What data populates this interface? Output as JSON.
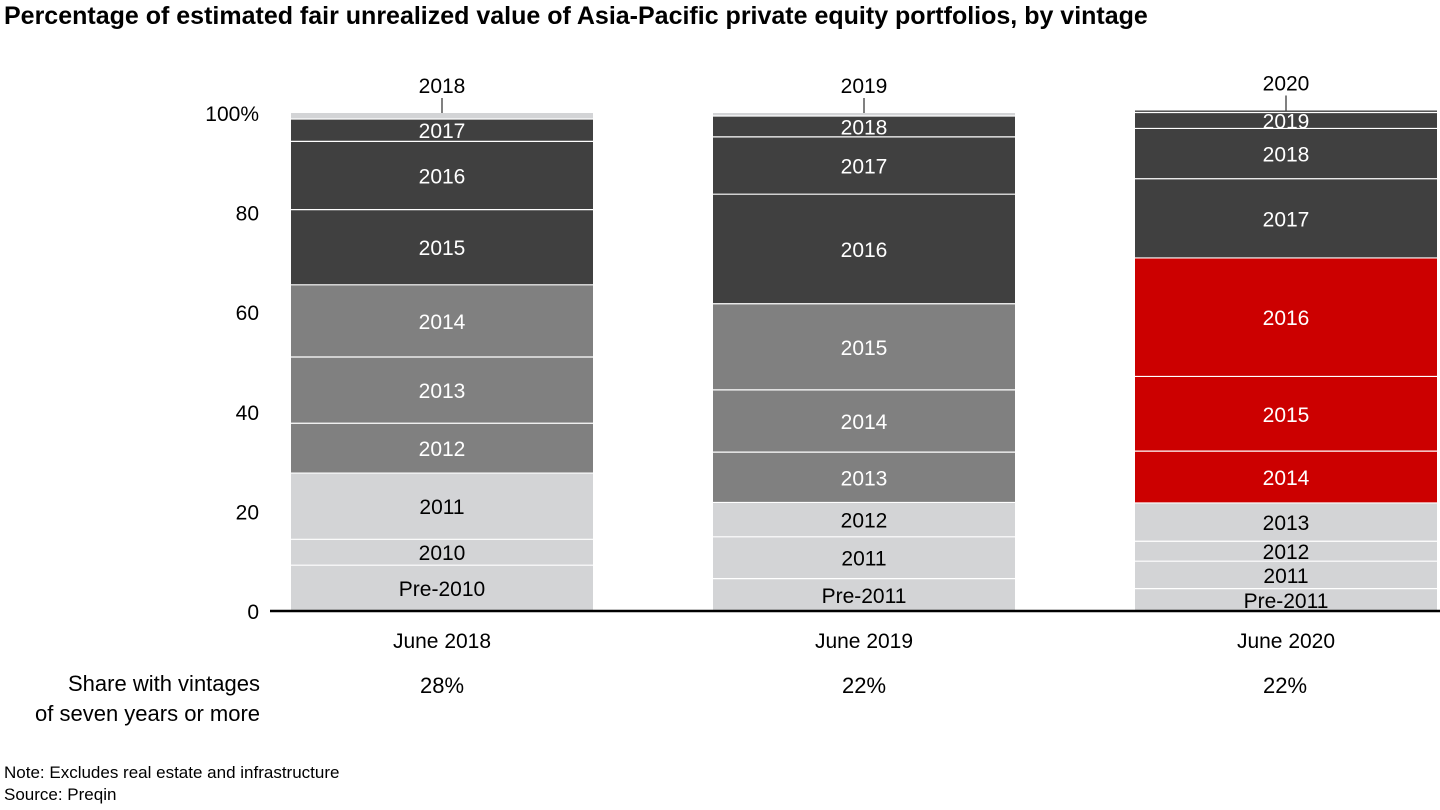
{
  "title": "Percentage of estimated fair unrealized value of Asia-Pacific private equity portfolios, by vintage",
  "share": {
    "label_line1": "Share with vintages",
    "label_line2": "of seven years or more",
    "values": [
      "28%",
      "22%",
      "22%"
    ]
  },
  "note": "Note: Excludes real estate and infrastructure",
  "source": "Source: Preqin",
  "colors": {
    "light": "#d3d4d6",
    "mid": "#808080",
    "dark": "#404040",
    "red": "#cc0000"
  },
  "chart_data": {
    "type": "bar",
    "stacked": true,
    "categories": [
      "June 2018",
      "June 2019",
      "June 2020"
    ],
    "ylim": [
      0,
      100
    ],
    "yticks": [
      0,
      20,
      40,
      60,
      80,
      100
    ],
    "ytick_labels": [
      "0",
      "20",
      "40",
      "60",
      "80",
      "100%"
    ],
    "stacks": [
      {
        "category": "June 2018",
        "segments": [
          {
            "label": "Pre-2010",
            "value": 9.2,
            "color": "light"
          },
          {
            "label": "2010",
            "value": 5.2,
            "color": "light"
          },
          {
            "label": "2011",
            "value": 13.3,
            "color": "light"
          },
          {
            "label": "2012",
            "value": 10.0,
            "color": "mid"
          },
          {
            "label": "2013",
            "value": 13.3,
            "color": "mid"
          },
          {
            "label": "2014",
            "value": 14.5,
            "color": "mid"
          },
          {
            "label": "2015",
            "value": 15.1,
            "color": "dark"
          },
          {
            "label": "2016",
            "value": 13.7,
            "color": "dark"
          },
          {
            "label": "2017",
            "value": 4.5,
            "color": "dark"
          },
          {
            "label": "2018",
            "value": 1.2,
            "color": "light",
            "callout": true
          }
        ]
      },
      {
        "category": "June 2019",
        "segments": [
          {
            "label": "Pre-2011",
            "value": 6.5,
            "color": "light"
          },
          {
            "label": "2011",
            "value": 8.4,
            "color": "light"
          },
          {
            "label": "2012",
            "value": 6.9,
            "color": "light"
          },
          {
            "label": "2013",
            "value": 10.1,
            "color": "mid"
          },
          {
            "label": "2014",
            "value": 12.5,
            "color": "mid"
          },
          {
            "label": "2015",
            "value": 17.3,
            "color": "mid"
          },
          {
            "label": "2016",
            "value": 22.0,
            "color": "dark"
          },
          {
            "label": "2017",
            "value": 11.5,
            "color": "dark"
          },
          {
            "label": "2018",
            "value": 4.2,
            "color": "dark"
          },
          {
            "label": "2019",
            "value": 0.6,
            "color": "light",
            "callout": true
          }
        ]
      },
      {
        "category": "June 2020",
        "segments": [
          {
            "label": "Pre-2011",
            "value": 4.5,
            "color": "light"
          },
          {
            "label": "2011",
            "value": 5.5,
            "color": "light"
          },
          {
            "label": "2012",
            "value": 4.0,
            "color": "light"
          },
          {
            "label": "2013",
            "value": 7.7,
            "color": "light"
          },
          {
            "label": "2014",
            "value": 10.4,
            "color": "red"
          },
          {
            "label": "2015",
            "value": 15.0,
            "color": "red"
          },
          {
            "label": "2016",
            "value": 23.8,
            "color": "red"
          },
          {
            "label": "2017",
            "value": 15.9,
            "color": "dark"
          },
          {
            "label": "2018",
            "value": 10.1,
            "color": "dark"
          },
          {
            "label": "2019",
            "value": 3.2,
            "color": "dark"
          },
          {
            "label": "2020",
            "value": 0.4,
            "color": "dark",
            "callout": true
          }
        ]
      }
    ]
  }
}
